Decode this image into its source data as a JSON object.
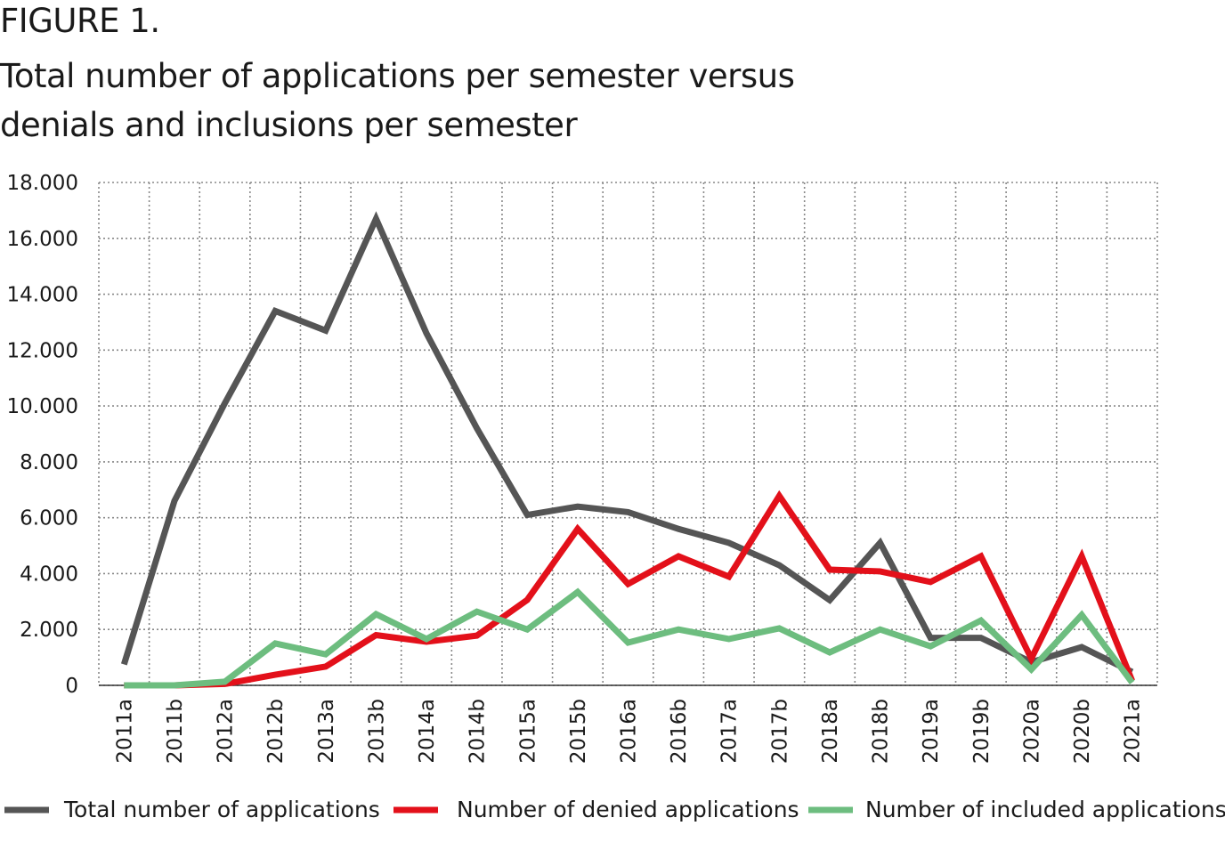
{
  "figure_label": "FIGURE 1.",
  "chart_data": {
    "type": "line",
    "title": "Total number of applications per semester versus denials and inclusions per semester",
    "xlabel": "",
    "ylabel": "",
    "categories": [
      "2011a",
      "2011b",
      "2012a",
      "2012b",
      "2013a",
      "2013b",
      "2014a",
      "2014b",
      "2015a",
      "2015b",
      "2016a",
      "2016b",
      "2017a",
      "2017b",
      "2018a",
      "2018b",
      "2019a",
      "2019b",
      "2020a",
      "2020b",
      "2021a"
    ],
    "ylim": [
      0,
      18000
    ],
    "yticks": [
      0,
      2000,
      4000,
      6000,
      8000,
      10000,
      12000,
      14000,
      16000,
      18000
    ],
    "ytick_labels": [
      "0",
      "2.000",
      "4.000",
      "6.000",
      "8.000",
      "10.000",
      "12.000",
      "14.000",
      "16.000",
      "18.000"
    ],
    "grid": true,
    "legend_placement": "bottom",
    "series": [
      {
        "name": "Total number of applications",
        "color": "#555555",
        "values": [
          750,
          6600,
          10100,
          13400,
          12700,
          16700,
          12600,
          9200,
          6100,
          6400,
          6200,
          5600,
          5100,
          4300,
          3050,
          5100,
          1700,
          1700,
          830,
          1370,
          480
        ]
      },
      {
        "name": "Number of denied applications",
        "color": "#e3101a",
        "values": [
          0,
          0,
          50,
          380,
          670,
          1800,
          1560,
          1780,
          3060,
          5600,
          3630,
          4620,
          3890,
          6780,
          4140,
          4080,
          3700,
          4620,
          960,
          4620,
          160
        ]
      },
      {
        "name": "Number of included applications",
        "color": "#6dbd7f",
        "values": [
          0,
          0,
          130,
          1500,
          1110,
          2550,
          1660,
          2640,
          2000,
          3340,
          1530,
          2000,
          1660,
          2040,
          1180,
          2000,
          1400,
          2320,
          570,
          2520,
          100
        ]
      }
    ]
  }
}
